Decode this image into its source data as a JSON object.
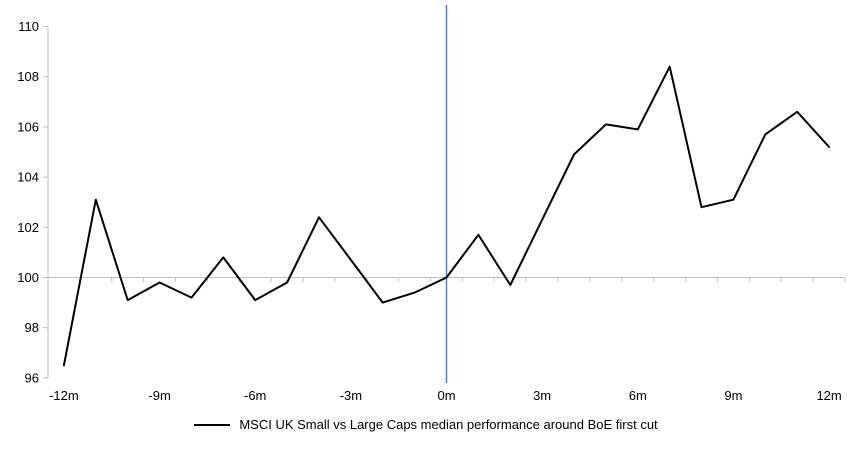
{
  "chart_data": {
    "type": "line",
    "title": "",
    "xlabel": "",
    "ylabel": "",
    "x": [
      -12,
      -11,
      -10,
      -9,
      -8,
      -7,
      -6,
      -5,
      -4,
      -3,
      -2,
      -1,
      0,
      1,
      2,
      3,
      4,
      5,
      6,
      7,
      8,
      9,
      10,
      11,
      12
    ],
    "series": [
      {
        "name": "MSCI UK Small vs Large Caps median performance around BoE first cut",
        "color": "#000000",
        "values": [
          96.5,
          103.1,
          99.1,
          99.8,
          99.2,
          100.8,
          99.1,
          99.8,
          102.4,
          100.7,
          99.0,
          99.4,
          100.0,
          101.7,
          99.7,
          102.3,
          104.9,
          106.1,
          105.9,
          108.4,
          102.8,
          103.1,
          105.7,
          106.6,
          105.2
        ]
      }
    ],
    "x_tick_values": [
      -12,
      -9,
      -6,
      -3,
      0,
      3,
      6,
      9,
      12
    ],
    "x_tick_labels": [
      "-12m",
      "-9m",
      "-6m",
      "-3m",
      "0m",
      "3m",
      "6m",
      "9m",
      "12m"
    ],
    "y_ticks": [
      96,
      98,
      100,
      102,
      104,
      106,
      108,
      110
    ],
    "ylim": [
      96,
      110
    ],
    "baseline": 100,
    "event_line": {
      "x": 0,
      "color": "#4F81BD"
    },
    "axis_color": "#BFBFBF",
    "grid": false,
    "legend_position": "bottom-center"
  }
}
